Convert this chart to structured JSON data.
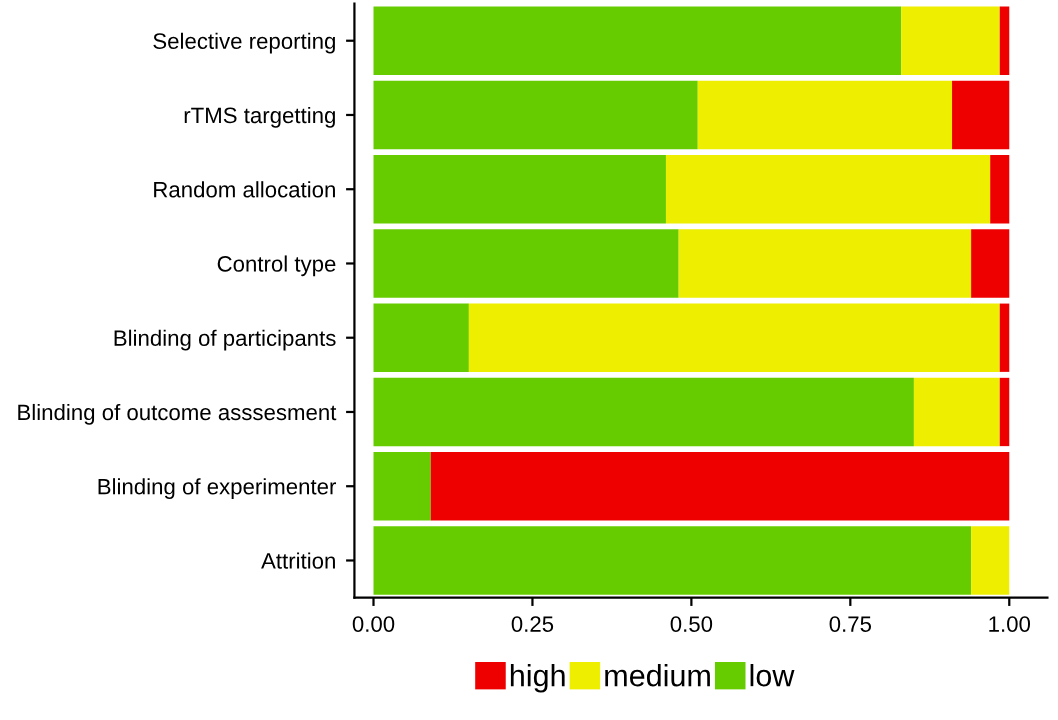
{
  "chart_data": {
    "type": "bar",
    "orientation": "horizontal",
    "stacked": true,
    "legend": "bottom",
    "grid": false,
    "categories": [
      "Selective reporting",
      "rTMS targetting",
      "Random allocation",
      "Control type",
      "Blinding of participants",
      "Blinding of outcome asssesment",
      "Blinding of experimenter",
      "Attrition"
    ],
    "series": [
      {
        "name": "low",
        "color": "#66cc00",
        "values": [
          0.83,
          0.51,
          0.46,
          0.48,
          0.15,
          0.85,
          0.09,
          0.94
        ]
      },
      {
        "name": "medium",
        "color": "#eeee00",
        "values": [
          0.155,
          0.4,
          0.51,
          0.46,
          0.835,
          0.135,
          0,
          0.06
        ]
      },
      {
        "name": "high",
        "color": "#ee0000",
        "values": [
          0.015,
          0.09,
          0.03,
          0.06,
          0.015,
          0.015,
          0.91,
          0
        ]
      }
    ],
    "xlim": [
      -0.03,
      1.06
    ],
    "xticks": [
      {
        "value": 0,
        "label": "0.00"
      },
      {
        "value": 0.25,
        "label": "0.25"
      },
      {
        "value": 0.5,
        "label": "0.50"
      },
      {
        "value": 0.75,
        "label": "0.75"
      },
      {
        "value": 1,
        "label": "1.00"
      }
    ]
  }
}
